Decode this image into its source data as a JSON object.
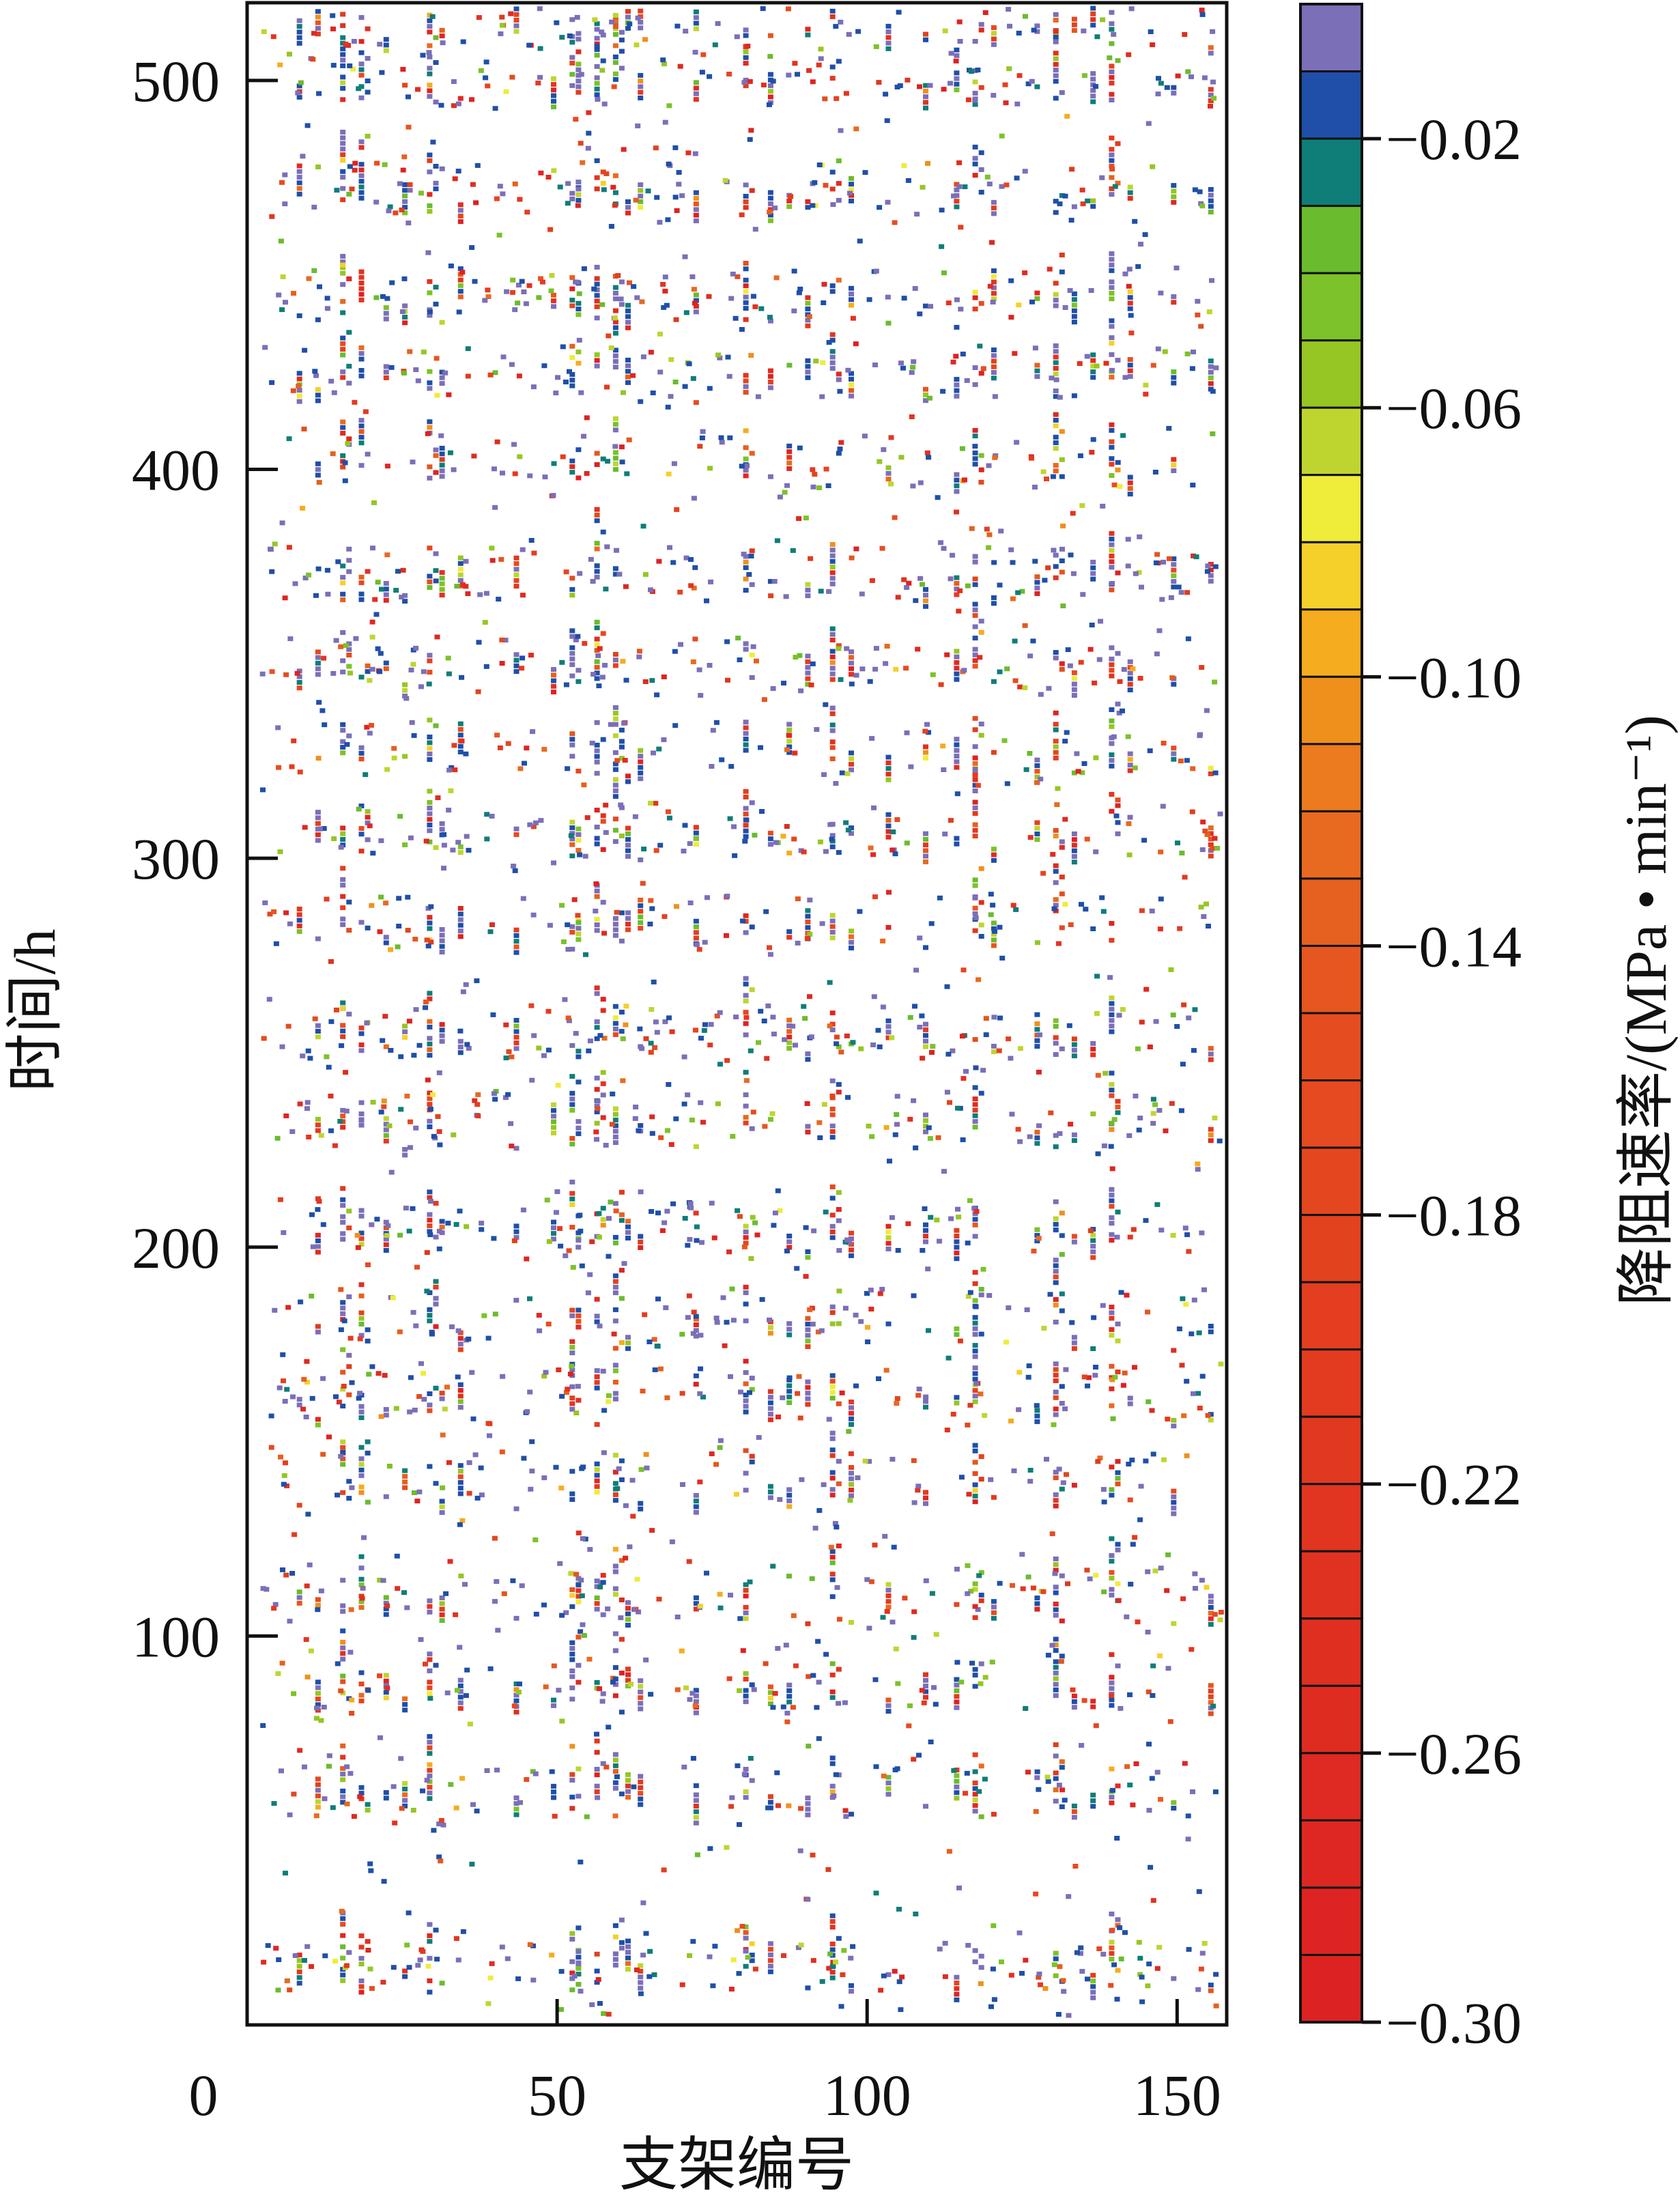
{
  "chart_data": {
    "type": "heatmap",
    "title": "",
    "xlabel": "支架编号",
    "ylabel": "时间/h",
    "xlim": [
      0,
      158
    ],
    "ylim": [
      0,
      520
    ],
    "x_ticks": [
      0,
      50,
      100,
      150
    ],
    "y_ticks": [
      100,
      200,
      300,
      400,
      500
    ],
    "x_tick_labels": [
      "0",
      "50",
      "100",
      "150"
    ],
    "y_tick_labels": [
      "100",
      "200",
      "300",
      "400",
      "500"
    ],
    "grid": false,
    "legend": "colorbar-right",
    "colorbar": {
      "label": "降阻速率/(MPa • min⁻¹)",
      "range": [
        -0.3,
        0.0
      ],
      "tick_labels": [
        "−0.02",
        "−0.06",
        "−0.10",
        "−0.14",
        "−0.18",
        "−0.22",
        "−0.26",
        "−0.30"
      ],
      "tick_values": [
        -0.02,
        -0.06,
        -0.1,
        -0.14,
        -0.18,
        -0.22,
        -0.26,
        -0.3
      ],
      "colors_top_to_bottom": [
        "#7b6fb8",
        "#1f4fa8",
        "#0f7d78",
        "#6bbb2e",
        "#7cc22a",
        "#95c624",
        "#bed530",
        "#efec3a",
        "#f5d02a",
        "#f5ac1e",
        "#f0901c",
        "#ec7a1f",
        "#e86a20",
        "#e6601f",
        "#e55620",
        "#e54d20",
        "#e54a20",
        "#e4461f",
        "#e3421f",
        "#e23e1f",
        "#e23b20",
        "#e13820",
        "#e13521",
        "#e03221",
        "#df2f21",
        "#df2c21",
        "#de2a22",
        "#de2722",
        "#dd2422",
        "#dd2222"
      ]
    },
    "columns_dense": [
      15,
      18,
      29,
      52,
      56,
      59,
      80,
      94,
      117,
      130,
      139
    ],
    "columns_medium": [
      8,
      11,
      22,
      25,
      31,
      34,
      43,
      49,
      53,
      61,
      63,
      72,
      84,
      87,
      90,
      97,
      103,
      109,
      114,
      120,
      127,
      133,
      136,
      142,
      149,
      155
    ],
    "row_bands": [
      15,
      60,
      88,
      110,
      140,
      162,
      182,
      205,
      232,
      255,
      283,
      307,
      328,
      350,
      373,
      402,
      425,
      445,
      472,
      500,
      515
    ]
  }
}
